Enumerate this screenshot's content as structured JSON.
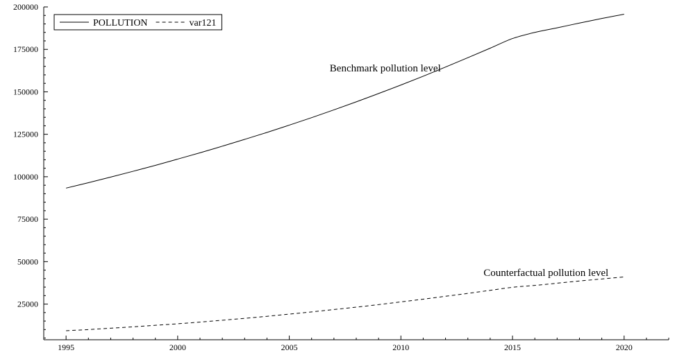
{
  "chart_data": {
    "type": "line",
    "title": "",
    "xlabel": "",
    "ylabel": "",
    "xlim": [
      1994,
      2022
    ],
    "ylim": [
      4000,
      200000
    ],
    "x_ticks": [
      1995,
      2000,
      2005,
      2010,
      2015,
      2020
    ],
    "y_ticks": [
      25000,
      50000,
      75000,
      100000,
      125000,
      150000,
      175000,
      200000
    ],
    "grid": false,
    "legend_position": "top-left",
    "x": [
      1995,
      1996,
      1997,
      1998,
      1999,
      2000,
      2001,
      2002,
      2003,
      2004,
      2005,
      2006,
      2007,
      2008,
      2009,
      2010,
      2011,
      2012,
      2013,
      2014,
      2015,
      2016,
      2017,
      2018,
      2019,
      2020
    ],
    "series": [
      {
        "name": "POLLUTION",
        "line_style": "solid",
        "color": "#000000",
        "values": [
          93300,
          96500,
          99800,
          103200,
          106700,
          110400,
          114100,
          118000,
          122000,
          126100,
          130400,
          134800,
          139400,
          144100,
          149000,
          154000,
          159200,
          164600,
          170100,
          175700,
          181400,
          185000,
          187700,
          190500,
          193200,
          195700
        ]
      },
      {
        "name": "var121",
        "line_style": "dashed",
        "color": "#000000",
        "values": [
          9300,
          10000,
          10800,
          11600,
          12500,
          13400,
          14400,
          15500,
          16600,
          17800,
          19100,
          20400,
          21800,
          23200,
          24700,
          26300,
          27900,
          29600,
          31300,
          33100,
          34900,
          36000,
          37300,
          38600,
          39800,
          41000
        ]
      }
    ],
    "annotations": [
      {
        "text": "Benchmark pollution level",
        "x": 2009.3,
        "y": 162000
      },
      {
        "text": "Counterfactual pollution level",
        "x": 2016.5,
        "y": 41500
      }
    ]
  }
}
